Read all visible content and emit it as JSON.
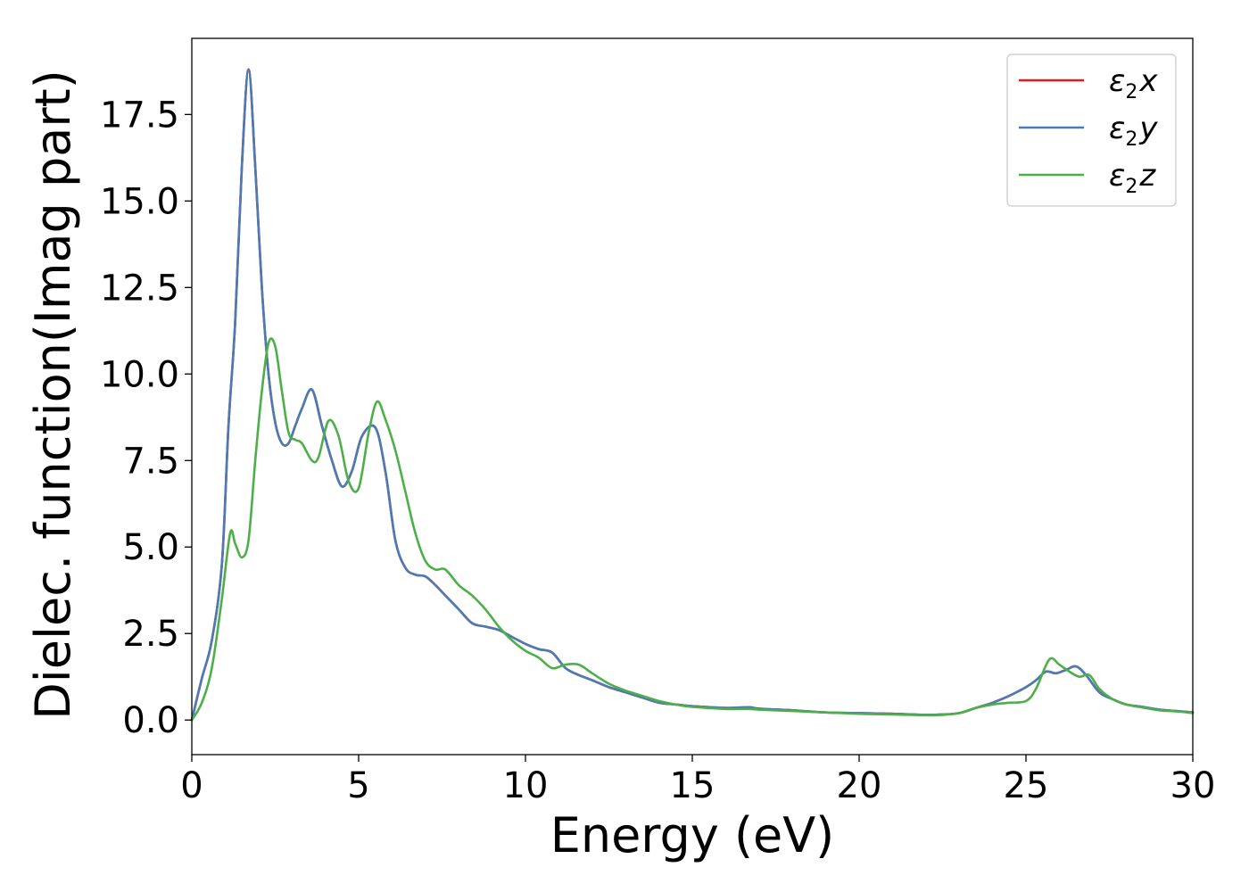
{
  "chart_data": {
    "type": "line",
    "title": "",
    "xlabel": "Energy (eV)",
    "ylabel": "Dielec. function(Imag part)",
    "xlim": [
      0,
      30
    ],
    "ylim": [
      -1,
      19.7
    ],
    "xticks": [
      0,
      5,
      10,
      15,
      20,
      25,
      30
    ],
    "xtick_labels": [
      "0",
      "5",
      "10",
      "15",
      "20",
      "25",
      "30"
    ],
    "yticks": [
      0,
      2.5,
      5,
      7.5,
      10,
      12.5,
      15,
      17.5
    ],
    "ytick_labels": [
      "0.0",
      "2.5",
      "5.0",
      "7.5",
      "10.0",
      "12.5",
      "15.0",
      "17.5"
    ],
    "grid": false,
    "legend_position": "top-right",
    "series": [
      {
        "name": "ε2x",
        "legend_base": "ε",
        "legend_sub": "2",
        "legend_var": "x",
        "color": "#e41a1c",
        "x": [
          0,
          0.3,
          0.6,
          0.9,
          1.1,
          1.3,
          1.5,
          1.7,
          1.9,
          2.1,
          2.3,
          2.5,
          2.7,
          2.9,
          3.1,
          3.3,
          3.6,
          3.9,
          4.2,
          4.5,
          4.8,
          5.1,
          5.5,
          5.8,
          6.1,
          6.4,
          6.7,
          7.0,
          7.3,
          7.6,
          8.0,
          8.4,
          8.8,
          9.2,
          9.6,
          10.0,
          10.4,
          10.8,
          11.2,
          11.6,
          12.0,
          12.5,
          13.0,
          13.5,
          14.0,
          14.5,
          15.0,
          16.0,
          16.7,
          17.0,
          18.0,
          19.0,
          20.0,
          21.0,
          22.0,
          22.5,
          23.0,
          23.5,
          24.0,
          24.5,
          25.0,
          25.3,
          25.6,
          25.9,
          26.2,
          26.5,
          26.8,
          27.2,
          27.6,
          28.0,
          28.5,
          29.0,
          29.5,
          30.0
        ],
        "y": [
          0,
          1.2,
          2.3,
          4.5,
          8.5,
          11.5,
          16.0,
          18.8,
          16.0,
          12.5,
          10.0,
          8.6,
          8.0,
          8.0,
          8.5,
          9.0,
          9.55,
          8.5,
          7.5,
          6.75,
          7.2,
          8.2,
          8.45,
          7.2,
          5.2,
          4.4,
          4.2,
          4.15,
          3.9,
          3.6,
          3.2,
          2.8,
          2.7,
          2.6,
          2.4,
          2.2,
          2.05,
          1.95,
          1.5,
          1.3,
          1.15,
          0.95,
          0.8,
          0.65,
          0.5,
          0.45,
          0.4,
          0.35,
          0.37,
          0.33,
          0.28,
          0.22,
          0.2,
          0.18,
          0.15,
          0.16,
          0.2,
          0.35,
          0.5,
          0.7,
          0.95,
          1.15,
          1.4,
          1.35,
          1.45,
          1.55,
          1.3,
          0.8,
          0.6,
          0.45,
          0.38,
          0.3,
          0.26,
          0.22
        ]
      },
      {
        "name": "ε2y",
        "legend_base": "ε",
        "legend_sub": "2",
        "legend_var": "y",
        "color": "#4a7bb5",
        "x": [
          0,
          0.3,
          0.6,
          0.9,
          1.1,
          1.3,
          1.5,
          1.7,
          1.9,
          2.1,
          2.3,
          2.5,
          2.7,
          2.9,
          3.1,
          3.3,
          3.6,
          3.9,
          4.2,
          4.5,
          4.8,
          5.1,
          5.5,
          5.8,
          6.1,
          6.4,
          6.7,
          7.0,
          7.3,
          7.6,
          8.0,
          8.4,
          8.8,
          9.2,
          9.6,
          10.0,
          10.4,
          10.8,
          11.2,
          11.6,
          12.0,
          12.5,
          13.0,
          13.5,
          14.0,
          14.5,
          15.0,
          16.0,
          16.7,
          17.0,
          18.0,
          19.0,
          20.0,
          21.0,
          22.0,
          22.5,
          23.0,
          23.5,
          24.0,
          24.5,
          25.0,
          25.3,
          25.6,
          25.9,
          26.2,
          26.5,
          26.8,
          27.2,
          27.6,
          28.0,
          28.5,
          29.0,
          29.5,
          30.0
        ],
        "y": [
          0,
          1.2,
          2.3,
          4.5,
          8.5,
          11.5,
          16.0,
          18.8,
          16.0,
          12.5,
          10.0,
          8.6,
          8.0,
          8.0,
          8.5,
          9.0,
          9.55,
          8.5,
          7.5,
          6.75,
          7.2,
          8.2,
          8.45,
          7.2,
          5.2,
          4.4,
          4.2,
          4.15,
          3.9,
          3.6,
          3.2,
          2.8,
          2.7,
          2.6,
          2.4,
          2.2,
          2.05,
          1.95,
          1.5,
          1.3,
          1.15,
          0.95,
          0.8,
          0.65,
          0.5,
          0.45,
          0.4,
          0.35,
          0.37,
          0.33,
          0.28,
          0.22,
          0.2,
          0.18,
          0.15,
          0.16,
          0.2,
          0.35,
          0.5,
          0.7,
          0.95,
          1.15,
          1.4,
          1.35,
          1.45,
          1.55,
          1.3,
          0.8,
          0.6,
          0.45,
          0.38,
          0.3,
          0.26,
          0.22
        ]
      },
      {
        "name": "ε2z",
        "legend_base": "ε",
        "legend_sub": "2",
        "legend_var": "z",
        "color": "#4daf4a",
        "x": [
          0,
          0.3,
          0.6,
          0.9,
          1.15,
          1.3,
          1.5,
          1.7,
          1.9,
          2.1,
          2.3,
          2.5,
          2.7,
          2.9,
          3.1,
          3.3,
          3.6,
          3.8,
          4.1,
          4.4,
          4.7,
          5.0,
          5.3,
          5.55,
          5.8,
          6.1,
          6.4,
          6.7,
          7.0,
          7.3,
          7.6,
          8.0,
          8.4,
          8.8,
          9.2,
          9.6,
          10.0,
          10.4,
          10.8,
          11.2,
          11.6,
          12.0,
          12.5,
          13.0,
          13.5,
          14.0,
          14.5,
          15.0,
          16.0,
          16.7,
          17.0,
          18.0,
          19.0,
          20.0,
          21.0,
          22.0,
          22.5,
          23.0,
          23.5,
          24.0,
          24.5,
          25.0,
          25.3,
          25.7,
          26.0,
          26.3,
          26.6,
          26.9,
          27.2,
          27.6,
          28.0,
          28.5,
          29.0,
          29.5,
          30.0
        ],
        "y": [
          0,
          0.5,
          1.5,
          3.5,
          5.4,
          5.1,
          4.7,
          5.2,
          7.5,
          9.5,
          10.9,
          10.8,
          9.5,
          8.3,
          8.1,
          8.0,
          7.5,
          7.6,
          8.65,
          8.2,
          6.9,
          6.7,
          8.3,
          9.2,
          8.7,
          7.8,
          6.6,
          5.4,
          4.6,
          4.35,
          4.35,
          3.9,
          3.6,
          3.2,
          2.7,
          2.3,
          2.0,
          1.8,
          1.5,
          1.6,
          1.6,
          1.35,
          1.05,
          0.85,
          0.7,
          0.55,
          0.45,
          0.38,
          0.32,
          0.32,
          0.3,
          0.26,
          0.22,
          0.18,
          0.16,
          0.14,
          0.15,
          0.2,
          0.35,
          0.45,
          0.5,
          0.55,
          0.9,
          1.75,
          1.6,
          1.4,
          1.25,
          1.3,
          0.9,
          0.6,
          0.45,
          0.36,
          0.28,
          0.25,
          0.2
        ]
      }
    ]
  }
}
